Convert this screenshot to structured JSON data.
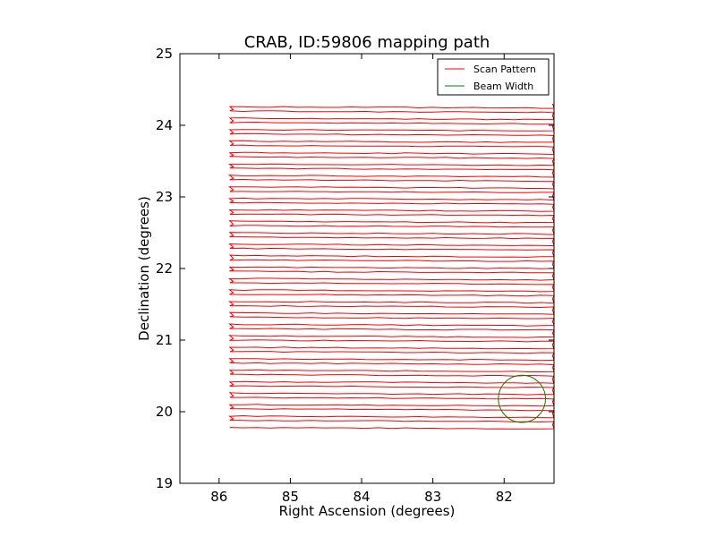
{
  "chart_data": {
    "type": "line",
    "title": "CRAB, ID:59806 mapping path",
    "xlabel": "Right Ascension (degrees)",
    "ylabel": "Declination (degrees)",
    "xlim": [
      86.55,
      81.3
    ],
    "ylim": [
      19,
      25
    ],
    "x_inverted": true,
    "xticks": [
      "86",
      "85",
      "84",
      "83",
      "82"
    ],
    "xtick_values": [
      86,
      85,
      84,
      83,
      82
    ],
    "yticks": [
      "19",
      "20",
      "21",
      "22",
      "23",
      "24",
      "25"
    ],
    "ytick_values": [
      19,
      20,
      21,
      22,
      23,
      24,
      25
    ],
    "grid": false,
    "legend_position": "top-right",
    "series": [
      {
        "name": "Scan Pattern",
        "color": "#ff0000",
        "pattern": "raster",
        "ra_range": [
          85.85,
          81.3
        ],
        "dec_range": [
          19.78,
          24.27
        ],
        "rows": 57,
        "row_spacing_deg": 0.08
      },
      {
        "name": "Beam Width",
        "color": "#008000",
        "shape": "circle",
        "center": [
          81.75,
          20.18
        ],
        "radius_deg": 0.33
      }
    ]
  }
}
